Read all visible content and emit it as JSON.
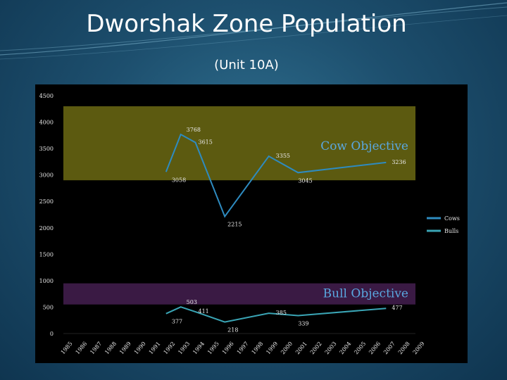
{
  "slide": {
    "title": "Dworshak Zone Population",
    "subtitle": "(Unit 10A)"
  },
  "colors": {
    "cows": "#2e8bc0",
    "bulls": "#3aa5b5",
    "cow_band": "#5c5a10",
    "bull_band": "#3a1a44",
    "objective_text": "#5aa8e0",
    "axis_text": "#e8e8e8"
  },
  "chart_data": {
    "type": "line",
    "title": "",
    "xlabel": "",
    "ylabel": "",
    "categories": [
      "1985",
      "1986",
      "1987",
      "1988",
      "1989",
      "1990",
      "1991",
      "1992",
      "1993",
      "1994",
      "1995",
      "1996",
      "1997",
      "1998",
      "1999",
      "2000",
      "2001",
      "2002",
      "2003",
      "2004",
      "2005",
      "2006",
      "2007",
      "2008",
      "2009"
    ],
    "ylim": [
      0,
      4500
    ],
    "yticks": [
      0,
      500,
      1000,
      1500,
      2000,
      2500,
      3000,
      3500,
      4000,
      4500
    ],
    "grid": false,
    "legend_position": "right",
    "bands": [
      {
        "label": "Cow Objective",
        "y0": 2900,
        "y1": 4300
      },
      {
        "label": "Bull Objective",
        "y0": 550,
        "y1": 950
      }
    ],
    "series": [
      {
        "name": "Cows",
        "points": [
          {
            "x": "1993",
            "y": 3768,
            "label": "3768"
          },
          {
            "x": "1994",
            "y": 3615,
            "label": "3615"
          },
          {
            "x": "1996",
            "y": 2215,
            "label": "2215"
          },
          {
            "x": "1999",
            "y": 3355,
            "label": "3355"
          },
          {
            "x": "2001",
            "y": 3045,
            "label": "3045"
          },
          {
            "x": "2007",
            "y": 3236,
            "label": "3236"
          }
        ]
      },
      {
        "name": "Bulls",
        "points": [
          {
            "x": "1993",
            "y": 503,
            "label": "503"
          },
          {
            "x": "1994",
            "y": 411,
            "label": "411"
          },
          {
            "x": "1996",
            "y": 218,
            "label": "218"
          },
          {
            "x": "1999",
            "y": 385,
            "label": "385"
          },
          {
            "x": "2001",
            "y": 339,
            "label": "339"
          },
          {
            "x": "2007",
            "y": 477,
            "label": "477"
          }
        ]
      }
    ],
    "extra_labels": [
      {
        "series": "Cows",
        "x": "1992",
        "y": 3058,
        "label": "3058"
      },
      {
        "series": "Bulls",
        "x": "1992",
        "y": 377,
        "label": "377"
      }
    ]
  }
}
